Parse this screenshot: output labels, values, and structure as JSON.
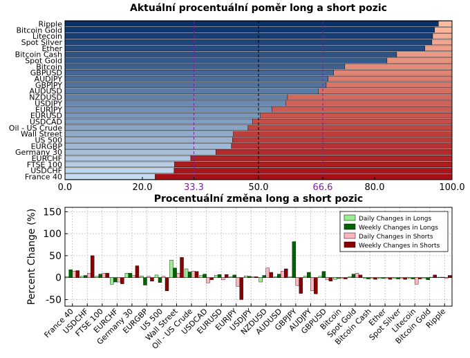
{
  "colors": {
    "long_dark": "#08306b",
    "long_light": "#c6dbef",
    "short_light": "#fcbba1",
    "short_dark": "#a50f15",
    "reference_line": "#7b1fa2",
    "daily_longs": "#98ee90",
    "weekly_longs": "#006400",
    "daily_shorts": "#ffb6c1",
    "weekly_shorts": "#8b0000"
  },
  "chart_data": [
    {
      "type": "bar",
      "orientation": "horizontal",
      "stacked": true,
      "title": "Aktuální procentuální poměr long a short pozic",
      "categories": [
        "Ripple",
        "Bitcoin Gold",
        "Litecoin",
        "Spot Silver",
        "Ether",
        "Bitcoin Cash",
        "Spot Gold",
        "Bitcoin",
        "GBPUSD",
        "AUDJPY",
        "GBPJPY",
        "AUDUSD",
        "NZDUSD",
        "USDJPY",
        "EURJPY",
        "EURUSD",
        "USDCAD",
        "Oil - US Crude",
        "Wall Street",
        "US 500",
        "EURGBP",
        "Germany 30",
        "EURCHF",
        "FTSE 100",
        "USDCHF",
        "France 40"
      ],
      "long_pct": [
        96.5,
        95.5,
        95.0,
        94.8,
        93.0,
        85.7,
        83.2,
        72.3,
        69.4,
        68.0,
        67.5,
        65.5,
        57.5,
        57.0,
        53.5,
        50.5,
        48.5,
        47.3,
        43.5,
        43.3,
        43.0,
        39.0,
        32.5,
        28.3,
        28.2,
        23.3
      ],
      "xlim": [
        0,
        100
      ],
      "xticks": [
        "0.0",
        "20.0",
        "33.3",
        "50.0",
        "66.6",
        "80.0",
        "100.0"
      ],
      "xtick_values": [
        0,
        20,
        33.3,
        50,
        66.6,
        80,
        100
      ],
      "reference_lines": [
        33.3,
        50,
        66.6
      ],
      "grid": true
    },
    {
      "type": "bar",
      "title": "Procentuální změna long a short pozic",
      "ylabel": "Percent Change (%)",
      "ylim": [
        -65,
        160
      ],
      "yticks": [
        -50,
        0,
        50,
        100,
        150
      ],
      "categories": [
        "France 40",
        "USDCHF",
        "FTSE 100",
        "EURCHF",
        "Germany 30",
        "EURGBP",
        "US 500",
        "Wall Street",
        "Oil - US Crude",
        "USDCAD",
        "EURUSD",
        "EURJPY",
        "USDJPY",
        "NZDUSD",
        "AUDUSD",
        "GBPJPY",
        "AUDJPY",
        "GBPUSD",
        "Bitcoin",
        "Spot Gold",
        "Bitcoin Cash",
        "Ether",
        "Spot Silver",
        "Litecoin",
        "Bitcoin Gold",
        "Ripple"
      ],
      "legend_position": "top-right",
      "grid": true,
      "series": [
        {
          "name": "Daily Changes in Longs",
          "values": [
            2,
            3,
            3,
            -15,
            10,
            4,
            6,
            40,
            20,
            5,
            5,
            2,
            4,
            -10,
            2,
            2,
            3,
            3,
            -4,
            2,
            -2,
            -2,
            -2,
            -2,
            -2,
            1
          ]
        },
        {
          "name": "Weekly Changes in Longs",
          "values": [
            18,
            5,
            8,
            -10,
            10,
            -17,
            -11,
            22,
            13,
            8,
            7,
            6,
            3,
            5,
            8,
            82,
            12,
            14,
            -2,
            8,
            -3,
            -2,
            -3,
            -3,
            -5,
            1
          ]
        },
        {
          "name": "Daily Changes in Shorts",
          "values": [
            15,
            10,
            10,
            -10,
            5,
            3,
            3,
            10,
            15,
            -12,
            -5,
            -20,
            2,
            22,
            15,
            -18,
            -30,
            -5,
            -2,
            10,
            -2,
            -2,
            -2,
            -15,
            1,
            -2
          ]
        },
        {
          "name": "Weekly Changes in Shorts",
          "values": [
            16,
            50,
            10,
            -14,
            27,
            -8,
            -30,
            46,
            14,
            -5,
            7,
            -50,
            2,
            12,
            20,
            -36,
            -37,
            -8,
            -3,
            6,
            -4,
            -4,
            -4,
            -3,
            6,
            5
          ]
        }
      ]
    }
  ]
}
